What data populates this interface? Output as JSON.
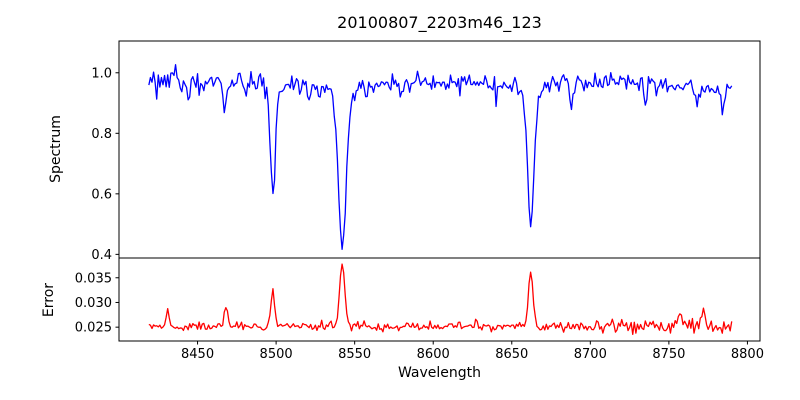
{
  "title": "20100807_2203m46_123",
  "x_axis": {
    "label": "Wavelength",
    "lim": [
      8400,
      8808
    ],
    "tick_values": [
      8450,
      8500,
      8550,
      8600,
      8650,
      8700,
      8750,
      8800
    ],
    "tick_labels": [
      "8450",
      "8500",
      "8550",
      "8600",
      "8650",
      "8700",
      "8750",
      "8800"
    ]
  },
  "chart_data": [
    {
      "type": "line",
      "name": "spectrum",
      "color": "#0000ff",
      "ylabel": "Spectrum",
      "ylim": [
        0.388,
        1.105
      ],
      "ytick_values": [
        0.4,
        0.6,
        0.8,
        1.0
      ],
      "ytick_labels": [
        "0.4",
        "0.6",
        "0.8",
        "1.0"
      ],
      "x_start": 8419,
      "x_end": 8790,
      "x_step": 1.0,
      "continuum": 0.965,
      "end_decline": {
        "from": 8720,
        "slope": 0.00025
      },
      "noise_sigma": 0.016,
      "start_noise": {
        "until": 8447,
        "factor": 1.5
      },
      "seed": 20100807,
      "absorption_lines": [
        {
          "center": 8498.0,
          "depth": 0.33,
          "sigma": 1.5,
          "wing_depth": 0.04,
          "wing_sigma": 4.5,
          "min_value": 0.6
        },
        {
          "center": 8542.1,
          "depth": 0.5,
          "sigma": 2.4,
          "wing_depth": 0.05,
          "wing_sigma": 7.0,
          "min_value": 0.42
        },
        {
          "center": 8662.1,
          "depth": 0.42,
          "sigma": 2.0,
          "wing_depth": 0.05,
          "wing_sigma": 6.0,
          "min_value": 0.5
        }
      ],
      "noise_dips": [
        {
          "center": 8444,
          "depth": 0.08,
          "sigma": 0.8
        },
        {
          "center": 8467,
          "depth": 0.09,
          "sigma": 0.8
        },
        {
          "center": 8480,
          "depth": 0.05,
          "sigma": 0.7
        },
        {
          "center": 8521,
          "depth": 0.07,
          "sigma": 0.8
        },
        {
          "center": 8558,
          "depth": 0.05,
          "sigma": 0.7
        },
        {
          "center": 8580,
          "depth": 0.05,
          "sigma": 0.7
        },
        {
          "center": 8640,
          "depth": 0.05,
          "sigma": 0.7
        },
        {
          "center": 8688,
          "depth": 0.08,
          "sigma": 0.9
        },
        {
          "center": 8735,
          "depth": 0.07,
          "sigma": 0.9
        },
        {
          "center": 8768,
          "depth": 0.07,
          "sigma": 0.9
        },
        {
          "center": 8784,
          "depth": 0.05,
          "sigma": 0.8
        }
      ],
      "noise_spikes": [
        {
          "center": 8429,
          "amp": 0.05,
          "sigma": 0.7
        },
        {
          "center": 8436,
          "amp": 0.05,
          "sigma": 0.7
        }
      ]
    },
    {
      "type": "line",
      "name": "error",
      "color": "#ff0000",
      "ylabel": "Error",
      "ylim": [
        0.0222,
        0.039
      ],
      "ytick_values": [
        0.025,
        0.03,
        0.035
      ],
      "ytick_labels": [
        "0.025",
        "0.030",
        "0.035"
      ],
      "x_start": 8419,
      "x_end": 8790,
      "x_step": 1.0,
      "baseline": 0.0252,
      "noise_sigma": 0.00045,
      "end_noise": {
        "from": 8700,
        "factor": 1.7
      },
      "seed": 2203,
      "peaks": [
        {
          "center": 8431,
          "amp": 0.0032,
          "sigma": 0.9
        },
        {
          "center": 8468,
          "amp": 0.0046,
          "sigma": 0.9
        },
        {
          "center": 8498,
          "amp": 0.0068,
          "sigma": 1.2
        },
        {
          "center": 8542.1,
          "amp": 0.0126,
          "sigma": 1.6
        },
        {
          "center": 8662.1,
          "amp": 0.0106,
          "sigma": 1.5
        },
        {
          "center": 8740,
          "amp": 0.0018,
          "sigma": 1.0
        },
        {
          "center": 8757,
          "amp": 0.0028,
          "sigma": 1.0
        },
        {
          "center": 8772,
          "amp": 0.0032,
          "sigma": 1.0
        }
      ]
    }
  ]
}
